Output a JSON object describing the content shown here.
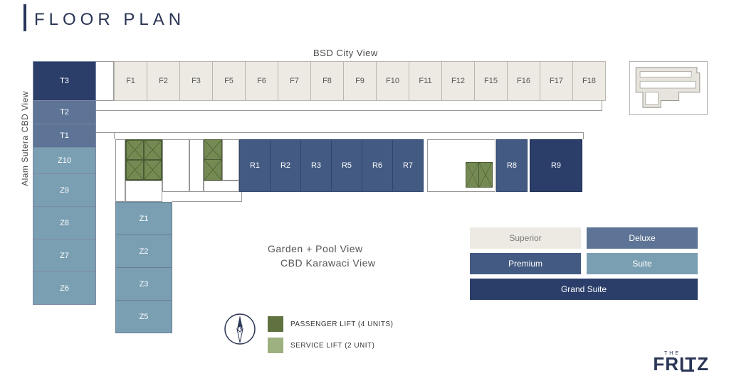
{
  "title": "FLOOR PLAN",
  "viewLabels": {
    "top": "BSD City View",
    "left": "Alam Sutera CBD View",
    "center1": "Garden  + Pool View",
    "center2": "CBD Karawaci View"
  },
  "colors": {
    "superior": "#eceae2",
    "deluxe": "#5d7496",
    "premium": "#435a82",
    "suite": "#7a9fb2",
    "grandSuite": "#2b3e6a",
    "passengerLift": "#5f7240",
    "serviceLift": "#9db07f",
    "border": "#b8b6af",
    "accentDark": "#27355c",
    "textMuted": "#6b6b6b",
    "t3": "#2b3e6a",
    "t2": "#5d7496",
    "t1": "#5d7496",
    "z": "#7a9fb2"
  },
  "rowF": [
    "F1",
    "F2",
    "F3",
    "F5",
    "F6",
    "F7",
    "F8",
    "F9",
    "F10",
    "F11",
    "F12",
    "F15",
    "F16",
    "F17",
    "F18"
  ],
  "colLeft": [
    {
      "label": "T3",
      "colorKey": "t3",
      "h": 56
    },
    {
      "label": "T2",
      "colorKey": "t2",
      "h": 34
    },
    {
      "label": "T1",
      "colorKey": "t1",
      "h": 34
    },
    {
      "label": "Z10",
      "colorKey": "z",
      "h": 38
    },
    {
      "label": "Z9",
      "colorKey": "z",
      "h": 47
    },
    {
      "label": "Z8",
      "colorKey": "z",
      "h": 47
    },
    {
      "label": "Z7",
      "colorKey": "z",
      "h": 47
    },
    {
      "label": "Z6",
      "colorKey": "z",
      "h": 47
    }
  ],
  "colZ2": [
    "Z1",
    "Z2",
    "Z3",
    "Z5"
  ],
  "rowR": [
    "R1",
    "R2",
    "R3",
    "R5",
    "R6",
    "R7"
  ],
  "r8": "R8",
  "r9": "R9",
  "legendTypes": [
    {
      "label": "Superior",
      "colorKey": "superior",
      "light": true
    },
    {
      "label": "Deluxe",
      "colorKey": "deluxe"
    },
    {
      "label": "Premium",
      "colorKey": "premium"
    },
    {
      "label": "Suite",
      "colorKey": "suite"
    }
  ],
  "legendGrand": {
    "label": "Grand Suite",
    "colorKey": "grandSuite"
  },
  "liftLegend": {
    "passenger": "PASSENGER LIFT (4 UNITS)",
    "service": "SERVICE LIFT (2 UNIT)"
  },
  "logo": {
    "the": "THE",
    "name": "FRITZ"
  },
  "compassLetter": "N"
}
